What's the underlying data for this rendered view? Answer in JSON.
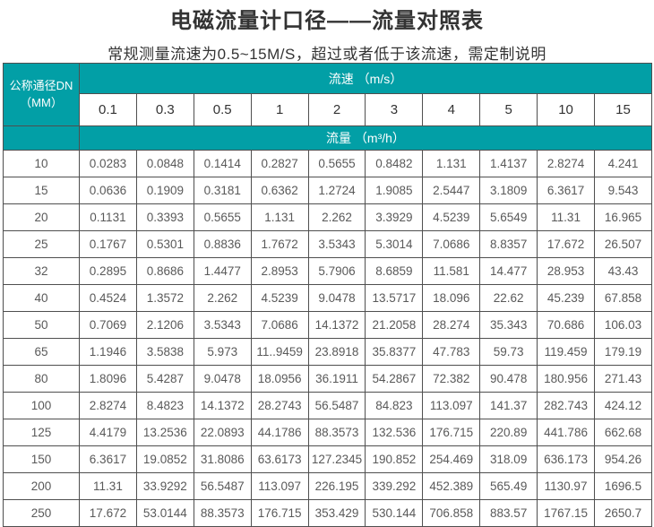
{
  "page": {
    "title": "电磁流量计口径——流量对照表",
    "subtitle": "常规测量流速为0.5~15M/S，超过或者低于该流速，需定制说明"
  },
  "table": {
    "corner_line1": "公称通径DN",
    "corner_line2": "（MM）",
    "velocity_header": "流速 （m/s）",
    "flow_header": "流量 （m³/h）",
    "velocities": [
      "0.1",
      "0.3",
      "0.5",
      "1",
      "2",
      "3",
      "4",
      "5",
      "10",
      "15"
    ],
    "rows": [
      {
        "dn": "10",
        "values": [
          "0.0283",
          "0.0848",
          "0.1414",
          "0.2827",
          "0.5655",
          "0.8482",
          "1.131",
          "1.4137",
          "2.8274",
          "4.241"
        ]
      },
      {
        "dn": "15",
        "values": [
          "0.0636",
          "0.1909",
          "0.3181",
          "0.6362",
          "1.2724",
          "1.9085",
          "2.5447",
          "3.1809",
          "6.3617",
          "9.543"
        ]
      },
      {
        "dn": "20",
        "values": [
          "0.1131",
          "0.3393",
          "0.5655",
          "1.131",
          "2.262",
          "3.3929",
          "4.5239",
          "5.6549",
          "11.31",
          "16.965"
        ]
      },
      {
        "dn": "25",
        "values": [
          "0.1767",
          "0.5301",
          "0.8836",
          "1.7672",
          "3.5343",
          "5.3014",
          "7.0686",
          "8.8357",
          "17.672",
          "26.507"
        ]
      },
      {
        "dn": "32",
        "values": [
          "0.2895",
          "0.8686",
          "1.4477",
          "2.8953",
          "5.7906",
          "8.6859",
          "11.581",
          "14.477",
          "28.953",
          "43.43"
        ]
      },
      {
        "dn": "40",
        "values": [
          "0.4524",
          "1.3572",
          "2.262",
          "4.5239",
          "9.0478",
          "13.5717",
          "18.096",
          "22.62",
          "45.239",
          "67.858"
        ]
      },
      {
        "dn": "50",
        "values": [
          "0.7069",
          "2.1206",
          "3.5343",
          "7.0686",
          "14.1372",
          "21.2058",
          "28.274",
          "35.343",
          "70.686",
          "106.03"
        ]
      },
      {
        "dn": "65",
        "values": [
          "1.1946",
          "3.5838",
          "5.973",
          "11..9459",
          "23.8918",
          "35.8377",
          "47.783",
          "59.73",
          "119.459",
          "179.19"
        ]
      },
      {
        "dn": "80",
        "values": [
          "1.8096",
          "5.4287",
          "9.0478",
          "18.0956",
          "36.1911",
          "54.2867",
          "72.382",
          "90.478",
          "180.956",
          "271.43"
        ]
      },
      {
        "dn": "100",
        "values": [
          "2.8274",
          "8.4823",
          "14.1372",
          "28.2743",
          "56.5487",
          "84.823",
          "113.097",
          "141.37",
          "282.743",
          "424.12"
        ]
      },
      {
        "dn": "125",
        "values": [
          "4.4179",
          "13.2536",
          "22.0893",
          "44.1786",
          "88.3573",
          "132.536",
          "176.715",
          "220.89",
          "441.786",
          "662.68"
        ]
      },
      {
        "dn": "150",
        "values": [
          "6.3617",
          "19.0852",
          "31.8086",
          "63.6173",
          "127.2345",
          "190.852",
          "254.469",
          "318.09",
          "636.173",
          "954.26"
        ]
      },
      {
        "dn": "200",
        "values": [
          "11.31",
          "33.9292",
          "56.5487",
          "113.097",
          "226.195",
          "339.292",
          "452.389",
          "565.49",
          "1130.97",
          "1696.5"
        ]
      },
      {
        "dn": "250",
        "values": [
          "17.672",
          "53.0144",
          "88.3573",
          "176.715",
          "353.429",
          "530.144",
          "706.858",
          "883.57",
          "1767.15",
          "2650.7"
        ]
      }
    ]
  },
  "colors": {
    "accent_teal": "#029FA6",
    "border": "#4f4f4f",
    "title_text": "#333333",
    "data_text": "#595959"
  }
}
